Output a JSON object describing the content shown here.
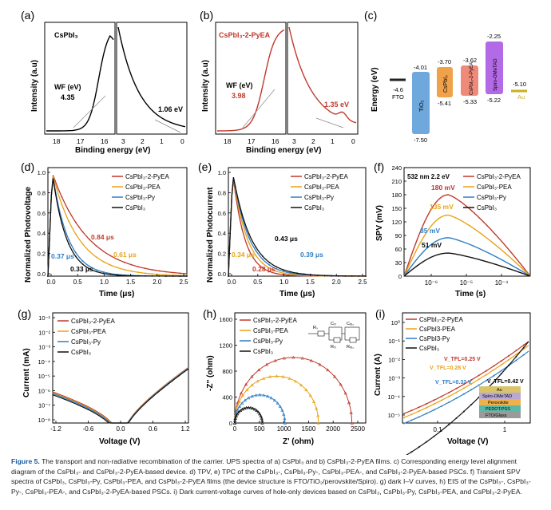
{
  "panel_a": {
    "letter": "(a)",
    "material": "CsPbI₃",
    "wf_label": "WF (eV)",
    "wf_value": "4.35",
    "vb_value": "1.06 eV",
    "ylabel": "Intensity (a.u)",
    "xlabel": "Binding energy (eV)",
    "ticks_left": [
      "18",
      "17",
      "16"
    ],
    "ticks_right": [
      "3",
      "2",
      "1",
      "0"
    ]
  },
  "panel_b": {
    "letter": "(b)",
    "material": "CsPbI₃-2-PyEA",
    "wf_label": "WF (eV)",
    "wf_value": "3.98",
    "vb_value": "1.35 eV",
    "ylabel": "Intensity (a.u)",
    "xlabel": "Binding energy (eV)",
    "ticks_left": [
      "18",
      "17",
      "16"
    ],
    "ticks_right": [
      "3",
      "2",
      "1",
      "0"
    ]
  },
  "panel_c": {
    "letter": "(c)",
    "ylabel": "Energy (eV)",
    "fto": {
      "label": "FTO",
      "value": "-4.6"
    },
    "tio2": {
      "label": "TiO₂",
      "top": "-4.01",
      "bottom": "-7.50"
    },
    "cspbi3": {
      "label": "CsPbI₃",
      "top": "-3.70",
      "bottom": "-5.41"
    },
    "pyea": {
      "label": "CsPbI₃-2-PyEA",
      "top": "-3.62",
      "bottom": "-5.33"
    },
    "spiro": {
      "label": "Spiro-OMeTAD",
      "top": "-2.25",
      "bottom": "-5.22"
    },
    "au": {
      "label": "Au",
      "value": "-5.10"
    },
    "colors": {
      "tio2": "#6fa8dc",
      "cspbi3": "#f0a24a",
      "pyea": "#ef8a7a",
      "spiro": "#b36ae6",
      "au": "#c9b020"
    }
  },
  "series_colors": {
    "pyea": "#c0392b",
    "pea": "#e8a317",
    "py": "#2e7ec4",
    "bare": "#111111"
  },
  "legend_names": [
    "CsPbI₃-2-PyEA",
    "CsPbI₃-PEA",
    "CsPbI₃-Py",
    "CsPbI₃"
  ],
  "panel_d": {
    "letter": "(d)",
    "ylabel": "Normalized Photovoltage",
    "xlabel": "Time (μs)",
    "xticks": [
      "0.0",
      "0.5",
      "1.0",
      "1.5",
      "2.0",
      "2.5"
    ],
    "yticks": [
      "0.0",
      "0.2",
      "0.4",
      "0.6",
      "0.8",
      "1.0"
    ],
    "ann_pyea": "0.84 μs",
    "ann_pea": "0.61 μs",
    "ann_py": "0.37 μs",
    "ann_bare": "0.33 μs"
  },
  "panel_e": {
    "letter": "(e)",
    "ylabel": "Normalized Photocurrent",
    "xlabel": "Time (μs)",
    "xticks": [
      "0.0",
      "0.5",
      "1.0",
      "1.5",
      "2.0",
      "2.5"
    ],
    "yticks": [
      "0.0",
      "0.2",
      "0.4",
      "0.6",
      "0.8",
      "1.0"
    ],
    "ann_bare": "0.43 μs",
    "ann_pea": "0.34 μs",
    "ann_py": "0.39 μs",
    "ann_pyea": "0.28 μs"
  },
  "panel_f": {
    "letter": "(f)",
    "ylabel": "SPV (mV)",
    "xlabel": "Time (s)",
    "note": "532 nm 2.2 eV",
    "yticks": [
      "0",
      "30",
      "60",
      "90",
      "120",
      "150",
      "180",
      "210",
      "240"
    ],
    "xticks": [
      "10⁻⁶",
      "10⁻⁵",
      "10⁻⁴"
    ],
    "ann_pyea": "180 mV",
    "ann_pea": "135 mV",
    "ann_py": "85 mV",
    "ann_bare": "51 mV",
    "legend": [
      "CsPbI₃-2-PyEA",
      "CsPbI₃-PEA",
      "CsPbI₃-Py",
      "CsPbI₃"
    ]
  },
  "panel_g": {
    "letter": "(g)",
    "ylabel": "Current (mA)",
    "xlabel": "Voltage (V)",
    "xticks": [
      "-1.2",
      "-0.6",
      "0.0",
      "0.6",
      "1.2"
    ],
    "yticks": [
      "10⁻¹",
      "10⁻²",
      "10⁻³",
      "10⁻⁴",
      "10⁻⁵",
      "10⁻⁶",
      "10⁻⁷",
      "10⁻⁸"
    ]
  },
  "panel_h": {
    "letter": "(h)",
    "ylabel": "-Z'' (ohm)",
    "xlabel": "Z' (ohm)",
    "xticks": [
      "0",
      "500",
      "1000",
      "1500",
      "2000",
      "2500"
    ],
    "yticks": [
      "0",
      "400",
      "800",
      "1200",
      "1600"
    ],
    "circuit": {
      "rs": "Rₛ",
      "rtr": "Rₜᵣ",
      "rrec": "Rᵣₑ꜀",
      "ctr": "Cₜᵣ",
      "crec": "Cᵣₑ꜀"
    }
  },
  "panel_i": {
    "letter": "(i)",
    "ylabel": "Current (A)",
    "xlabel": "Voltage (V)",
    "yticks": [
      "10⁰",
      "10⁻¹",
      "10⁻²",
      "10⁻³",
      "10⁻⁴",
      "10⁻⁵"
    ],
    "xticks": [
      "0.1",
      "1"
    ],
    "vtfl_pyea": "V_TFL=0.25 V",
    "vtfl_pea": "V_TFL=0.28 V",
    "vtfl_py": "V_TFL=0.32 V",
    "vtfl_bare": "V_TFL=0.42 V",
    "legend": [
      "CsPbI₃-2-PyEA",
      "CsPbI3-PEA",
      "CsPbI3-Py",
      "CsPbI₃"
    ],
    "stack": [
      "Au",
      "Spiro-OMeTAD",
      "Perovskite",
      "PEDOT:PSS",
      "FTO/Glass"
    ]
  },
  "caption": {
    "label": "Figure 5.",
    "text": "The transport and non-radiative recombination of the carrier. UPS spectra of a) CsPbI₃ and b) CsPbI₃-2-PyEA films. c) Corresponding energy level alignment diagram of the CsPbI₃- and CsPbI₃-2-PyEA-based device. d) TPV, e) TPC of the CsPbI₃-, CsPbI₃-Py-, CsPbI₃-PEA-, and CsPbI₃-2-PyEA-based PSCs. f) Transient SPV spectra of CsPbI₃, CsPbI₃-Py, CsPbI₃-PEA, and CsPbI₃-2-PyEA films (the device structure is FTO/TiO₂/perovskite/Spiro). g) dark I–V curves, h) EIS of the CsPbI₃-, CsPbI₃-Py-, CsPbI₃-PEA-, and CsPbI₃-2-PyEA-based PSCs. i) Dark current-voltage curves of hole-only devices based on CsPbI₃, CsPbI₃-Py, CsPbI₃-PEA, and CsPbI₃-2-PyEA."
  },
  "chart_data": [
    {
      "type": "line",
      "title": "UPS CsPbI3",
      "xlabel": "Binding energy (eV)",
      "ylabel": "Intensity (a.u)",
      "wf_ev": 4.35,
      "vb_ev": 1.06
    },
    {
      "type": "line",
      "title": "UPS CsPbI3-2-PyEA",
      "xlabel": "Binding energy (eV)",
      "ylabel": "Intensity (a.u)",
      "wf_ev": 3.98,
      "vb_ev": 1.35
    },
    {
      "type": "bar",
      "title": "Energy level alignment",
      "categories": [
        "FTO",
        "TiO2",
        "CsPbI3",
        "CsPbI3-2-PyEA",
        "Spiro-OMeTAD",
        "Au"
      ],
      "cb": [
        -4.6,
        -4.01,
        -3.7,
        -3.62,
        -2.25,
        -5.1
      ],
      "vb": [
        -4.6,
        -7.5,
        -5.41,
        -5.33,
        -5.22,
        -5.1
      ]
    },
    {
      "type": "line",
      "title": "TPV",
      "xlabel": "Time (μs)",
      "ylabel": "Normalized Photovoltage",
      "xlim": [
        0,
        2.5
      ],
      "ylim": [
        0,
        1.05
      ],
      "series": [
        {
          "name": "CsPbI3-2-PyEA",
          "tau_us": 0.84
        },
        {
          "name": "CsPbI3-PEA",
          "tau_us": 0.61
        },
        {
          "name": "CsPbI3-Py",
          "tau_us": 0.37
        },
        {
          "name": "CsPbI3",
          "tau_us": 0.33
        }
      ]
    },
    {
      "type": "line",
      "title": "TPC",
      "xlabel": "Time (μs)",
      "ylabel": "Normalized Photocurrent",
      "xlim": [
        0,
        2.5
      ],
      "ylim": [
        0,
        1.05
      ],
      "series": [
        {
          "name": "CsPbI3-2-PyEA",
          "tau_us": 0.28
        },
        {
          "name": "CsPbI3-PEA",
          "tau_us": 0.34
        },
        {
          "name": "CsPbI3-Py",
          "tau_us": 0.39
        },
        {
          "name": "CsPbI3",
          "tau_us": 0.43
        }
      ]
    },
    {
      "type": "line",
      "title": "Transient SPV",
      "xlabel": "Time (s)",
      "ylabel": "SPV (mV)",
      "ylim": [
        0,
        240
      ],
      "series": [
        {
          "name": "CsPbI3-2-PyEA",
          "peak_mV": 180
        },
        {
          "name": "CsPbI3-PEA",
          "peak_mV": 135
        },
        {
          "name": "CsPbI3-Py",
          "peak_mV": 85
        },
        {
          "name": "CsPbI3",
          "peak_mV": 51
        }
      ]
    },
    {
      "type": "line",
      "title": "Dark I-V",
      "xlabel": "Voltage (V)",
      "ylabel": "Current (mA)",
      "xlim": [
        -1.2,
        1.2
      ],
      "ylim_log10": [
        -8,
        -1
      ]
    },
    {
      "type": "scatter",
      "title": "EIS Nyquist",
      "xlabel": "Z' (ohm)",
      "ylabel": "-Z'' (ohm)",
      "xlim": [
        0,
        2500
      ],
      "ylim": [
        0,
        1600
      ],
      "series": [
        {
          "name": "CsPbI3-2-PyEA",
          "start": 0,
          "end": 2380
        },
        {
          "name": "CsPbI3-PEA",
          "start": 0,
          "end": 1700
        },
        {
          "name": "CsPbI3-Py",
          "start": 0,
          "end": 1020
        },
        {
          "name": "CsPbI3",
          "start": 0,
          "end": 560
        }
      ]
    },
    {
      "type": "line",
      "title": "SCLC hole-only",
      "xlabel": "Voltage (V)",
      "ylabel": "Current (A)",
      "series": [
        {
          "name": "CsPbI3-2-PyEA",
          "vtfl_V": 0.25
        },
        {
          "name": "CsPbI3-PEA",
          "vtfl_V": 0.28
        },
        {
          "name": "CsPbI3-Py",
          "vtfl_V": 0.32
        },
        {
          "name": "CsPbI3",
          "vtfl_V": 0.42
        }
      ]
    }
  ]
}
